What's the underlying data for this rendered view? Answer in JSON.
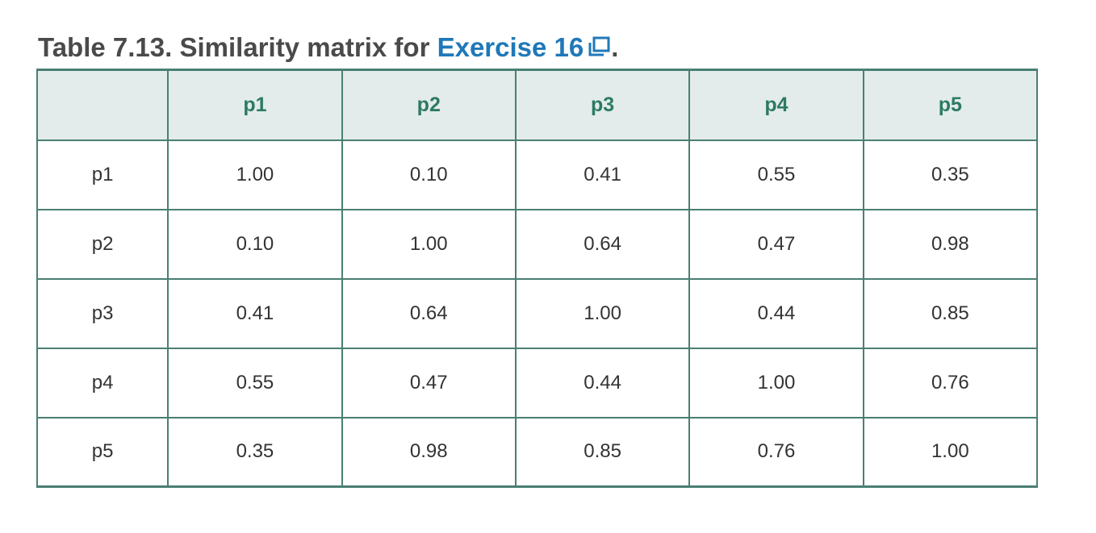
{
  "caption": {
    "prefix": "Table 7.13. Similarity matrix for ",
    "link_text": "Exercise 16",
    "link_icon": "external-link-icon",
    "suffix": ".",
    "colors": {
      "text": "#4a4a4a",
      "link": "#1f78b8"
    }
  },
  "table": {
    "corner": "",
    "columns": [
      "p1",
      "p2",
      "p3",
      "p4",
      "p5"
    ],
    "rows": [
      {
        "label": "p1",
        "cells": [
          "1.00",
          "0.10",
          "0.41",
          "0.55",
          "0.35"
        ]
      },
      {
        "label": "p2",
        "cells": [
          "0.10",
          "1.00",
          "0.64",
          "0.47",
          "0.98"
        ]
      },
      {
        "label": "p3",
        "cells": [
          "0.41",
          "0.64",
          "1.00",
          "0.44",
          "0.85"
        ]
      },
      {
        "label": "p4",
        "cells": [
          "0.55",
          "0.47",
          "0.44",
          "1.00",
          "0.76"
        ]
      },
      {
        "label": "p5",
        "cells": [
          "0.35",
          "0.98",
          "0.85",
          "0.76",
          "1.00"
        ]
      }
    ],
    "colors": {
      "border": "#4a7f72",
      "header_bg": "#e3eceb",
      "header_text": "#2d7a63"
    }
  }
}
